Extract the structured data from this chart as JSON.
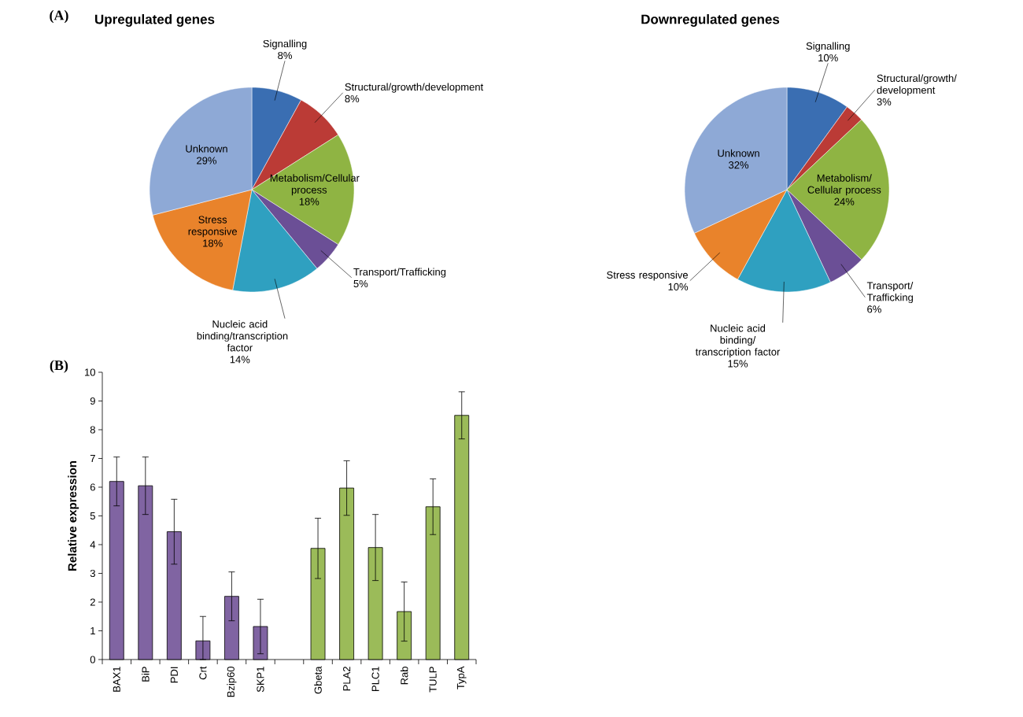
{
  "chart_data": [
    {
      "type": "pie",
      "title": "Upregulated genes",
      "annotations": [
        "(A)"
      ],
      "categories": [
        "Signalling",
        "Structural/growth/development",
        "Metabolism/Cellular process",
        "Transport/Trafficking",
        "Nucleic acid binding/transcription factor",
        "Stress responsive",
        "Unknown"
      ],
      "values": [
        8,
        8,
        18,
        5,
        14,
        18,
        29
      ],
      "value_labels": [
        "8%",
        "8%",
        "18%",
        "5%",
        "14%",
        "18%",
        "29%"
      ],
      "colors": [
        "#3a6eb2",
        "#bb3b36",
        "#8fb443",
        "#6b4f96",
        "#2fa0c0",
        "#e9832b",
        "#8ea9d6"
      ]
    },
    {
      "type": "pie",
      "title": "Downregulated genes",
      "categories": [
        "Signalling",
        "Structural/growth/ development",
        "Metabolism/ Cellular process",
        "Transport/ Trafficking",
        "Nucleic acid binding/ transcription factor",
        "Stress responsive",
        "Unknown"
      ],
      "values": [
        10,
        3,
        24,
        6,
        15,
        10,
        32
      ],
      "value_labels": [
        "10%",
        "3%",
        "24%",
        "6%",
        "15%",
        "10%",
        "32%"
      ],
      "colors": [
        "#3a6eb2",
        "#bb3b36",
        "#8fb443",
        "#6b4f96",
        "#2fa0c0",
        "#e9832b",
        "#8ea9d6"
      ]
    },
    {
      "type": "bar",
      "annotations": [
        "(B)"
      ],
      "ylabel": "Relative expression",
      "categories": [
        "BAX1",
        "BiP",
        "PDI",
        "Crt",
        "Bzip60",
        "SKP1",
        null,
        "Gbeta",
        "PLA2",
        "PLC1",
        "Rab",
        "TULP",
        "TypA"
      ],
      "values": [
        6.2,
        6.05,
        4.45,
        0.65,
        2.2,
        1.15,
        null,
        3.87,
        5.97,
        3.9,
        1.67,
        5.32,
        8.5
      ],
      "errors": [
        0.85,
        1.0,
        1.13,
        [
          0,
          1.5
        ],
        0.85,
        0.95,
        null,
        1.05,
        0.95,
        1.15,
        1.03,
        0.97,
        0.82
      ],
      "colors": [
        "#8064a2",
        "#8064a2",
        "#8064a2",
        "#8064a2",
        "#8064a2",
        "#8064a2",
        null,
        "#9bbb59",
        "#9bbb59",
        "#9bbb59",
        "#9bbb59",
        "#9bbb59",
        "#9bbb59"
      ],
      "ylim": [
        0,
        10
      ],
      "yticks": [
        0,
        1,
        2,
        3,
        4,
        5,
        6,
        7,
        8,
        9,
        10
      ]
    }
  ]
}
